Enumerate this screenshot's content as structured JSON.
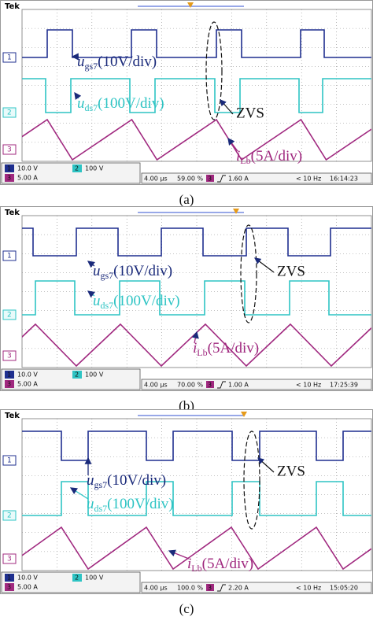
{
  "panels": [
    {
      "brand": "Tek",
      "channel_markers": [
        "1",
        "2",
        "3"
      ],
      "gs_label": {
        "symbol": "u",
        "sub": "gs7",
        "scale": "(10V/div)"
      },
      "ds_label": {
        "symbol": "u",
        "sub": "ds7",
        "scale": "(100V/div)"
      },
      "i_label": {
        "symbol": "i",
        "sub": "Lb",
        "scale": "(5A/div)"
      },
      "annotation": "ZVS",
      "status": {
        "ch1": {
          "label": "1",
          "scale": "10.0 V"
        },
        "ch2": {
          "label": "2",
          "scale": "100 V"
        },
        "ch3": {
          "label": "3",
          "scale": "5.00 A"
        },
        "time": "4.00 µs",
        "position": "59.00 %",
        "trigger_source": "3",
        "trigger_level": "1.60 A",
        "frequency": "< 10 Hz",
        "clock": "16:14:23"
      },
      "caption": "(a)"
    },
    {
      "brand": "Tek",
      "channel_markers": [
        "1",
        "2",
        "3"
      ],
      "gs_label": {
        "symbol": "u",
        "sub": "gs7",
        "scale": "(10V/div)"
      },
      "ds_label": {
        "symbol": "u",
        "sub": "ds7",
        "scale": "(100V/div)"
      },
      "i_label": {
        "symbol": "i",
        "sub": "Lb",
        "scale": "(5A/div)"
      },
      "annotation": "ZVS",
      "status": {
        "ch1": {
          "label": "1",
          "scale": "10.0 V"
        },
        "ch2": {
          "label": "2",
          "scale": "100 V"
        },
        "ch3": {
          "label": "3",
          "scale": "5.00 A"
        },
        "time": "4.00 µs",
        "position": "70.00 %",
        "trigger_source": "3",
        "trigger_level": "1.00 A",
        "frequency": "< 10 Hz",
        "clock": "17:25:39"
      },
      "caption": "(b)"
    },
    {
      "brand": "Tek",
      "channel_markers": [
        "1",
        "2",
        "3"
      ],
      "gs_label": {
        "symbol": "u",
        "sub": "gs7",
        "scale": "(10V/div)"
      },
      "ds_label": {
        "symbol": "u",
        "sub": "ds7",
        "scale": "(100V/div)"
      },
      "i_label": {
        "symbol": "i",
        "sub": "Lb",
        "scale": "(5A/div)"
      },
      "annotation": "ZVS",
      "status": {
        "ch1": {
          "label": "1",
          "scale": "10.0 V"
        },
        "ch2": {
          "label": "2",
          "scale": "100 V"
        },
        "ch3": {
          "label": "3",
          "scale": "5.00 A"
        },
        "time": "4.00 µs",
        "position": "100.0 %",
        "trigger_source": "3",
        "trigger_level": "2.20 A",
        "frequency": "< 10 Hz",
        "clock": "15:05:20"
      },
      "caption": "(c)"
    }
  ]
}
